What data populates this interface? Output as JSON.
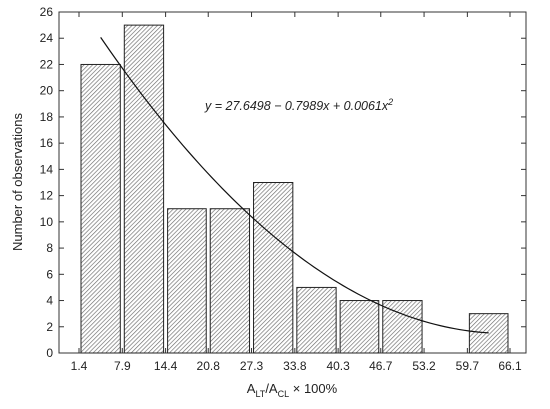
{
  "chart_data": {
    "type": "bar",
    "xlabel": "A_LT/A_CL × 100%",
    "xlabel_parts": {
      "base1": "A",
      "sub1": "LT",
      "sep": "/A",
      "sub2": "CL",
      "suffix": " × 100%"
    },
    "ylabel": "Number of observations",
    "ylim": [
      0,
      26
    ],
    "yticks": [
      0,
      2,
      4,
      6,
      8,
      10,
      12,
      14,
      16,
      18,
      20,
      22,
      24,
      26
    ],
    "bin_edges": [
      1.4,
      7.9,
      14.4,
      20.8,
      27.3,
      33.8,
      40.3,
      46.7,
      53.2,
      59.7,
      66.1
    ],
    "bin_edge_labels": [
      "1.4",
      "7.9",
      "14.4",
      "20.8",
      "27.3",
      "33.8",
      "40.3",
      "46.7",
      "53.2",
      "59.7",
      "66.1"
    ],
    "values": [
      22,
      25,
      11,
      11,
      13,
      5,
      4,
      4,
      0,
      3
    ],
    "grid": false,
    "fit_curve": {
      "equation_text": "y = 27.6498 − 0.7989x + 0.0061x",
      "equation_sup": "2",
      "coefficients": [
        27.6498,
        -0.7989,
        0.0061
      ],
      "x_range": [
        4.65,
        62.9
      ]
    }
  }
}
